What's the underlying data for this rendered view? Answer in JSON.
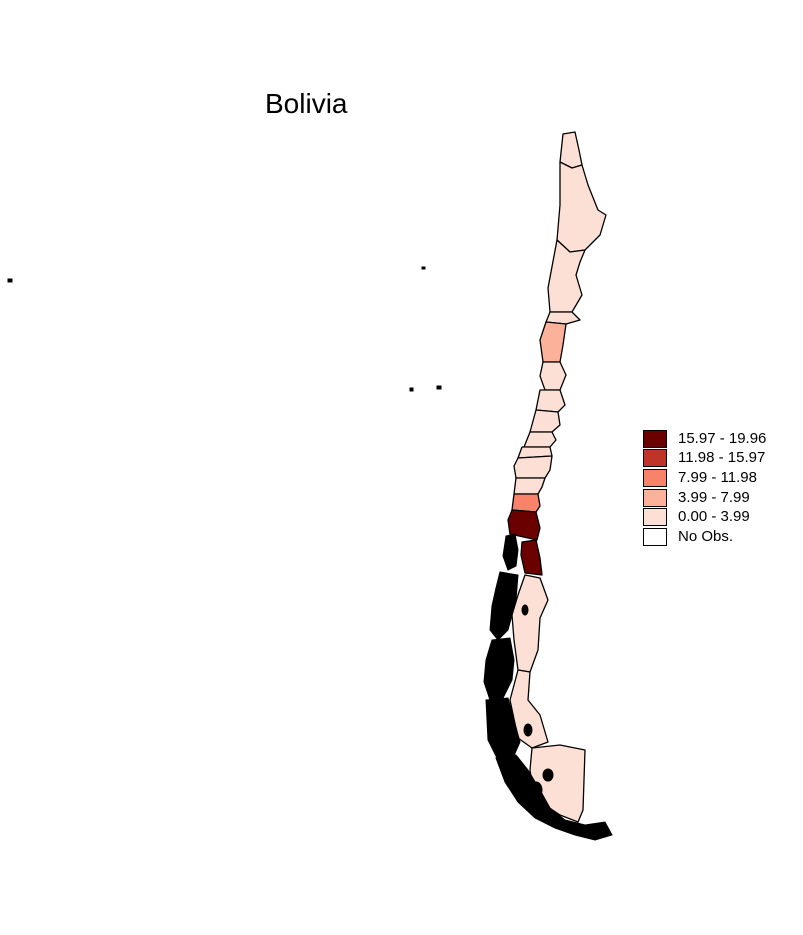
{
  "title": "Bolivia",
  "legend": {
    "items": [
      {
        "label": "15.97 - 19.96",
        "color": "#6b0000"
      },
      {
        "label": "11.98 - 15.97",
        "color": "#bf3328"
      },
      {
        "label": "7.99 - 11.98",
        "color": "#f9836a"
      },
      {
        "label": "3.99 - 7.99",
        "color": "#fcb29a"
      },
      {
        "label": "0.00 - 3.99",
        "color": "#fde0d5"
      },
      {
        "label": "No Obs.",
        "color": "#ffffff"
      }
    ]
  },
  "map": {
    "outline_color": "#000000",
    "regions": [
      {
        "name": "region-1",
        "class": 4
      },
      {
        "name": "region-2",
        "class": 4
      },
      {
        "name": "region-3",
        "class": 4
      },
      {
        "name": "region-4",
        "class": 4
      },
      {
        "name": "region-5",
        "class": 3
      },
      {
        "name": "region-6",
        "class": 4
      },
      {
        "name": "region-7",
        "class": 4
      },
      {
        "name": "region-8",
        "class": 4
      },
      {
        "name": "region-9",
        "class": 4
      },
      {
        "name": "region-10",
        "class": 4
      },
      {
        "name": "region-11",
        "class": 4
      },
      {
        "name": "region-12",
        "class": 4
      },
      {
        "name": "region-13",
        "class": 2
      },
      {
        "name": "region-14",
        "class": 0
      },
      {
        "name": "region-15",
        "class": 0
      },
      {
        "name": "region-16",
        "class": 4
      },
      {
        "name": "region-17",
        "class": 4
      },
      {
        "name": "region-18",
        "class": 4
      }
    ]
  }
}
